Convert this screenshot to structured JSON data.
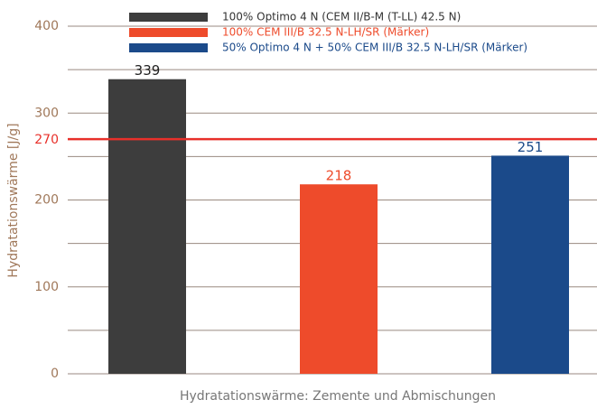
{
  "chart_data": {
    "type": "bar",
    "x_label": "Hydratationswärme: Zemente und Abmischungen",
    "y_label": "Hydratationswärme [J/g]",
    "categories": [
      null,
      null,
      null
    ],
    "values": [
      339,
      218,
      251
    ],
    "colors": [
      "#3d3d3d",
      "#ee4b2b",
      "#1b4a8a"
    ],
    "legend": [
      "100% Optimo 4 N (CEM II/B-M (T-LL) 42.5 N)",
      "100% CEM III/B 32.5 N-LH/SR (Märker)",
      "50% Optimo 4 N + 50% CEM III/B 32.5 N-LH/SR (Märker)"
    ],
    "ylim": [
      0,
      400
    ],
    "yticks": [
      0,
      100,
      200,
      300,
      400
    ],
    "minor_yticks": [
      50,
      150,
      250,
      350
    ],
    "grid": true,
    "reference_line": {
      "value": 270,
      "label": "270",
      "color": "#e8302a"
    }
  }
}
